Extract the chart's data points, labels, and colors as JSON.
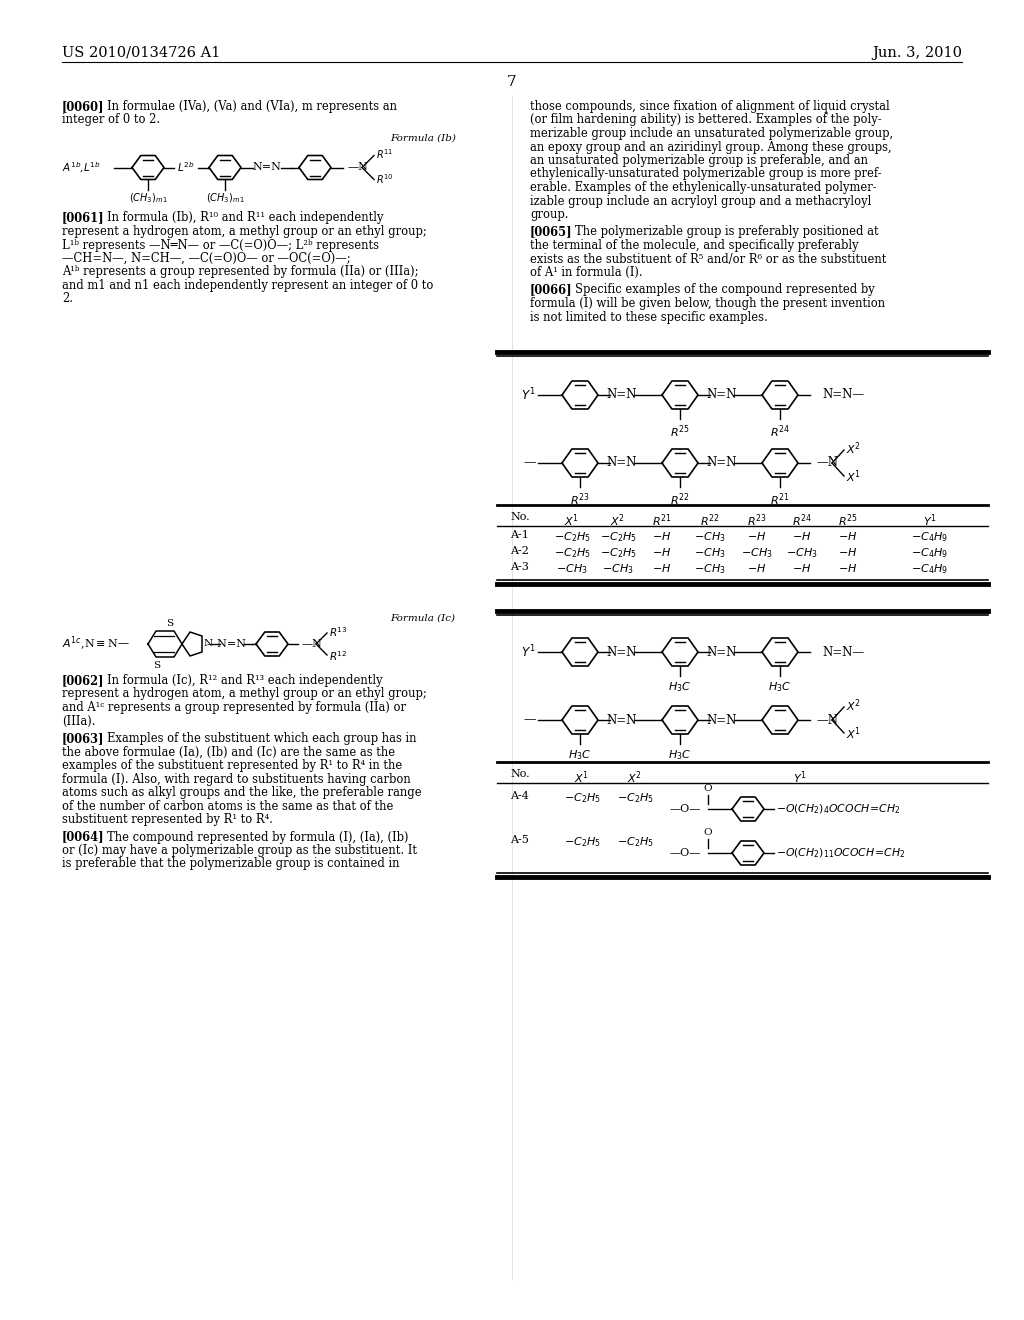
{
  "bg_color": "#ffffff",
  "header_left": "US 2010/0134726 A1",
  "header_right": "Jun. 3, 2010",
  "page_number": "7"
}
